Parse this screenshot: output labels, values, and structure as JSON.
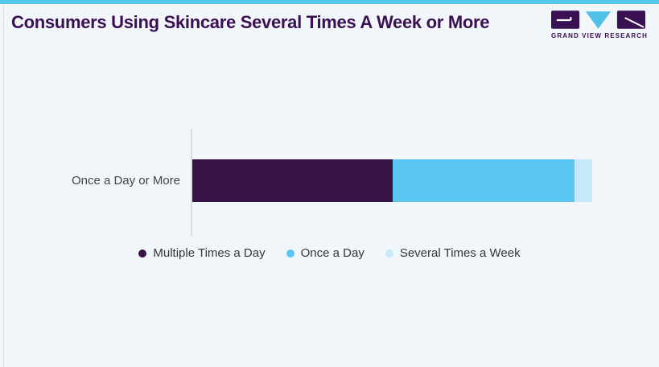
{
  "page": {
    "title": "Consumers Using Skincare Several Times A Week or More",
    "background": "#F0F6FA",
    "accent_top_border": "#55C8E9"
  },
  "brand": {
    "name": "GRAND VIEW RESEARCH",
    "logo_purple": "#3B1053",
    "logo_blue": "#4FC0E8"
  },
  "chart_data": {
    "type": "bar",
    "orientation": "horizontal",
    "stacked": true,
    "title": "Consumers Using Skincare Several Times A Week or More",
    "categories": [
      "Once a Day or More"
    ],
    "series": [
      {
        "name": "Multiple Times a Day",
        "values": [
          50
        ],
        "color": "#371245"
      },
      {
        "name": "Once a Day",
        "values": [
          45.5
        ],
        "color": "#5BC6F2"
      },
      {
        "name": "Several Times a Week",
        "values": [
          4.5
        ],
        "color": "#C6E8F9"
      }
    ],
    "xlim": [
      0,
      100
    ],
    "grid": false,
    "legend_position": "bottom",
    "axis_line_color": "#D8DDE3"
  }
}
